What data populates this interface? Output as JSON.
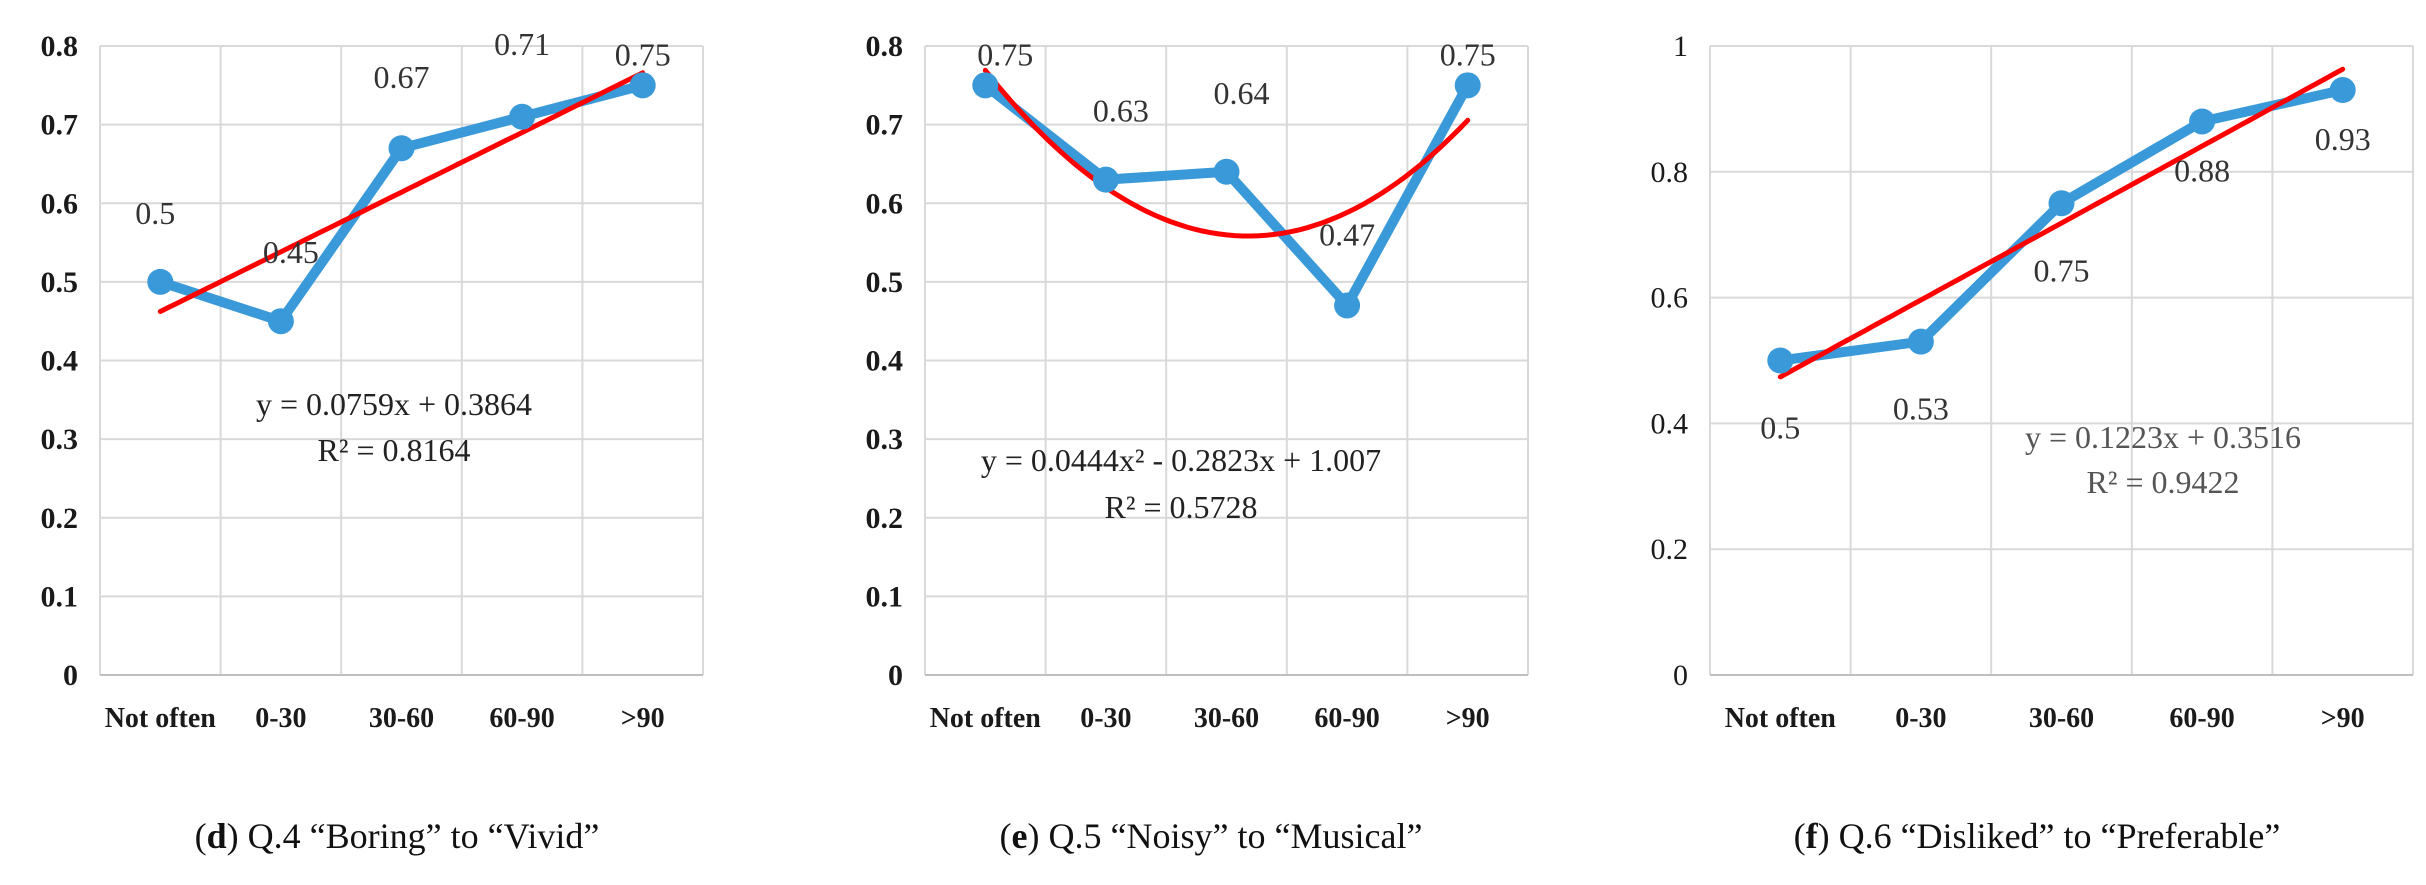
{
  "chart_data": [
    {
      "type": "line",
      "categories": [
        "Not often",
        "0-30",
        "30-60",
        "60-90",
        ">90"
      ],
      "series": [
        {
          "values": [
            0.5,
            0.45,
            0.67,
            0.71,
            0.75
          ],
          "data_labels": [
            "0.5",
            "0.45",
            "0.67",
            "0.71",
            "0.75"
          ],
          "color": "#3a9ad9"
        }
      ],
      "trendline": {
        "type": "linear",
        "coef": [
          0.0759,
          0.3864
        ],
        "color": "#ff0000"
      },
      "equation": "y = 0.0759x + 0.3864",
      "r_squared": "R² = 0.8164",
      "y_ticks": [
        "0",
        "0.1",
        "0.2",
        "0.3",
        "0.4",
        "0.5",
        "0.6",
        "0.7",
        "0.8"
      ],
      "ylim": [
        0,
        0.8
      ],
      "grid": true,
      "caption": {
        "letter": "d",
        "text": ") Q.4 “Boring” to “Vivid”"
      }
    },
    {
      "type": "line",
      "categories": [
        "Not often",
        "0-30",
        "30-60",
        "60-90",
        ">90"
      ],
      "series": [
        {
          "values": [
            0.75,
            0.63,
            0.64,
            0.47,
            0.75
          ],
          "data_labels": [
            "0.75",
            "0.63",
            "0.64",
            "0.47",
            "0.75"
          ],
          "color": "#3a9ad9"
        }
      ],
      "trendline": {
        "type": "polynomial",
        "coef": [
          0.0444,
          -0.2823,
          1.007
        ],
        "color": "#ff0000"
      },
      "equation": "y = 0.0444x² - 0.2823x + 1.007",
      "r_squared": "R² = 0.5728",
      "y_ticks": [
        "0",
        "0.1",
        "0.2",
        "0.3",
        "0.4",
        "0.5",
        "0.6",
        "0.7",
        "0.8"
      ],
      "ylim": [
        0,
        0.8
      ],
      "grid": true,
      "caption": {
        "letter": "e",
        "text": ") Q.5 “Noisy” to “Musical”"
      }
    },
    {
      "type": "line",
      "categories": [
        "Not often",
        "0-30",
        "30-60",
        "60-90",
        ">90"
      ],
      "series": [
        {
          "values": [
            0.5,
            0.53,
            0.75,
            0.88,
            0.93
          ],
          "data_labels": [
            "0.5",
            "0.53",
            "0.75",
            "0.88",
            "0.93"
          ],
          "color": "#3a9ad9"
        }
      ],
      "trendline": {
        "type": "linear",
        "coef": [
          0.1223,
          0.3516
        ],
        "color": "#ff0000"
      },
      "equation": "y = 0.1223x + 0.3516",
      "r_squared": "R² = 0.9422",
      "y_ticks": [
        "0",
        "0.2",
        "0.4",
        "0.6",
        "0.8",
        "1"
      ],
      "ylim": [
        0,
        1
      ],
      "grid": true,
      "caption": {
        "letter": "f",
        "text": ") Q.6 “Disliked” to “Preferable”"
      }
    }
  ]
}
